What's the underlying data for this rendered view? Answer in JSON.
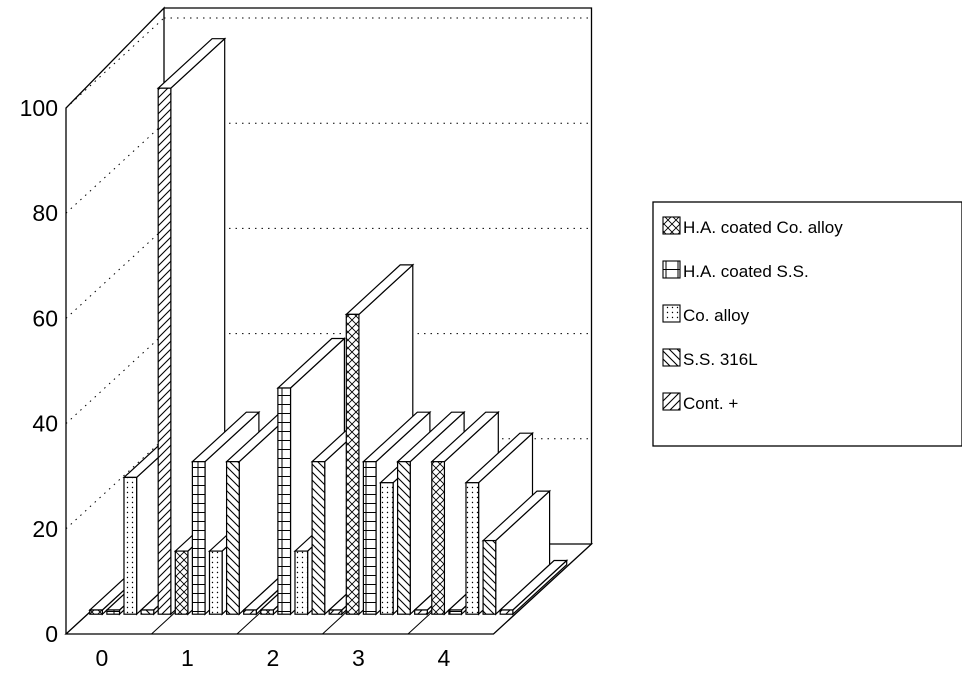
{
  "chart_data": {
    "type": "bar",
    "style": "3d-grouped-bar",
    "title": "",
    "xlabel": "",
    "ylabel": "",
    "ylim": [
      0,
      100
    ],
    "y_ticks": [
      0,
      20,
      40,
      60,
      80,
      100
    ],
    "categories": [
      "0",
      "1",
      "2",
      "3",
      "4"
    ],
    "grid": true,
    "legend_position": "right",
    "series": [
      {
        "name": "H.A. coated Co. alloy",
        "pattern": "crosshatch",
        "values": [
          0,
          12,
          0,
          57,
          29
        ]
      },
      {
        "name": "H.A. coated S.S.",
        "pattern": "brick",
        "values": [
          0,
          29,
          43,
          29,
          0
        ]
      },
      {
        "name": "Co. alloy",
        "pattern": "dots",
        "values": [
          26,
          12,
          12,
          25,
          25
        ]
      },
      {
        "name": "S.S. 316L",
        "pattern": "back-diagonal",
        "values": [
          0,
          29,
          29,
          29,
          14
        ]
      },
      {
        "name": "Cont. +",
        "pattern": "forward-diagonal",
        "values": [
          100,
          0,
          0,
          0,
          0
        ]
      }
    ]
  }
}
